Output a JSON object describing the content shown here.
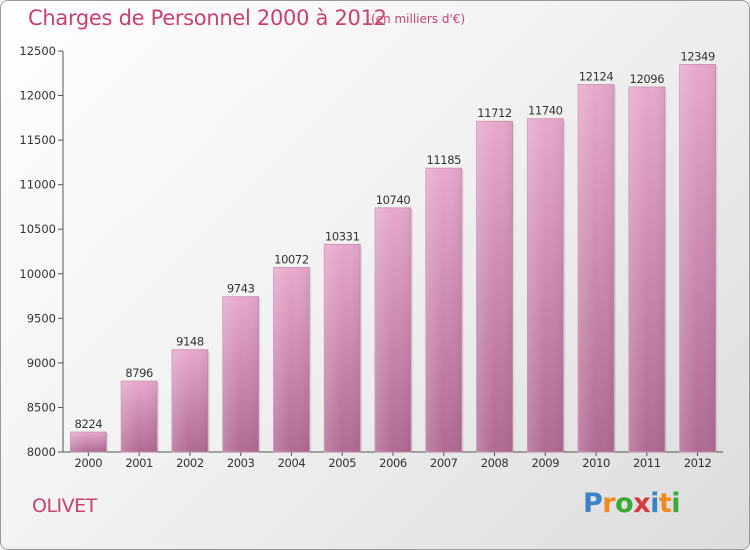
{
  "title": "Charges de Personnel 2000 à 2012",
  "subtitle": "(en milliers d'€)",
  "commune": "OLIVET",
  "logo": {
    "letters": [
      {
        "ch": "P",
        "color": "#3a83c6"
      },
      {
        "ch": "r",
        "color": "#f08a1c"
      },
      {
        "ch": "o",
        "color": "#3aaa35"
      },
      {
        "ch": "x",
        "color": "#d63a3a"
      },
      {
        "ch": "i",
        "color": "#3a83c6"
      },
      {
        "ch": "t",
        "color": "#f08a1c"
      },
      {
        "ch": "i",
        "color": "#3aaa35"
      }
    ]
  },
  "colors": {
    "bar_top": "#e7a8cc",
    "bar_bottom": "#b06a92",
    "text": "#333333",
    "title": "#c8426e"
  },
  "chart_data": {
    "type": "bar",
    "title": "Charges de Personnel 2000 à 2012",
    "subtitle": "(en milliers d'€)",
    "xlabel": "",
    "ylabel": "",
    "categories": [
      "2000",
      "2001",
      "2002",
      "2003",
      "2004",
      "2005",
      "2006",
      "2007",
      "2008",
      "2009",
      "2010",
      "2011",
      "2012"
    ],
    "values": [
      8224,
      8796,
      9148,
      9743,
      10072,
      10331,
      10740,
      11185,
      11712,
      11740,
      12124,
      12096,
      12349
    ],
    "ylim": [
      8000,
      12500
    ],
    "yticks": [
      8000,
      8500,
      9000,
      9500,
      10000,
      10500,
      11000,
      11500,
      12000,
      12500
    ],
    "grid": false,
    "legend": "none"
  }
}
